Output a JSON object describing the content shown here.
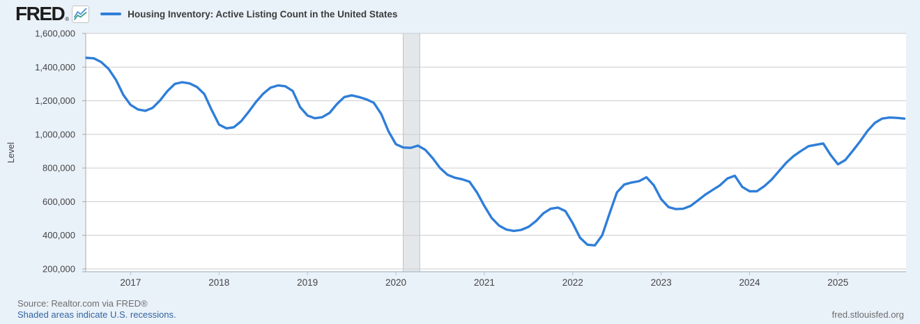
{
  "header": {
    "logo_text": "FRED",
    "registered_mark": "®",
    "legend_label": "Housing Inventory: Active Listing Count in the United States"
  },
  "footer": {
    "source": "Source: Realtor.com via FRED®",
    "recession_note": "Shaded areas indicate U.S. recessions.",
    "site": "fred.stlouisfed.org"
  },
  "colors": {
    "background": "#e9f1f9",
    "plot_bg": "#ffffff",
    "line": "#2f7ed8",
    "gridline": "#cccccc",
    "axis_line": "#a9a9a9",
    "x_axis_line": "#b3c2ce",
    "recession_band": "#e4e7ea",
    "recession_band_edge": "#bcc2c6",
    "axis_text": "#444444",
    "title_text": "#3c3c3c",
    "source_text": "#6e6e6e",
    "link": "#33659f",
    "logo": "#1c1c1c"
  },
  "chart_data": {
    "type": "line",
    "title": "Housing Inventory: Active Listing Count in the United States",
    "ylabel": "Level",
    "xlabel": "",
    "frequency": "monthly",
    "start": "2016-07",
    "end": "2025-10",
    "x_start": 2016.5,
    "xlim": [
      2016.5,
      2025.77
    ],
    "ylim": [
      200000,
      1600000
    ],
    "grid": "horizontal",
    "legend_position": "top-left",
    "y_tick_values": [
      1600000,
      1400000,
      1200000,
      1000000,
      800000,
      600000,
      400000,
      200000
    ],
    "y_tick_labels": [
      "1,600,000",
      "1,400,000",
      "1,200,000",
      "1,000,000",
      "800,000",
      "600,000",
      "400,000",
      "200,000"
    ],
    "x_tick_values": [
      2017,
      2018,
      2019,
      2020,
      2021,
      2022,
      2023,
      2024,
      2025
    ],
    "x_tick_labels": [
      "2017",
      "2018",
      "2019",
      "2020",
      "2021",
      "2022",
      "2023",
      "2024",
      "2025"
    ],
    "recession_bands": [
      {
        "start": 2020.083,
        "end": 2020.27
      }
    ],
    "series": [
      {
        "name": "Housing Inventory: Active Listing Count in the United States",
        "color": "#2f7ed8",
        "values": [
          1455000,
          1452000,
          1430000,
          1390000,
          1325000,
          1235000,
          1175000,
          1148000,
          1140000,
          1158000,
          1202000,
          1258000,
          1300000,
          1310000,
          1303000,
          1282000,
          1240000,
          1145000,
          1058000,
          1036000,
          1042000,
          1078000,
          1133000,
          1192000,
          1242000,
          1278000,
          1291000,
          1286000,
          1258000,
          1162000,
          1112000,
          1096000,
          1102000,
          1128000,
          1180000,
          1222000,
          1232000,
          1222000,
          1208000,
          1188000,
          1122000,
          1018000,
          942000,
          922000,
          920000,
          933000,
          908000,
          858000,
          800000,
          760000,
          742000,
          733000,
          718000,
          655000,
          575000,
          503000,
          458000,
          434000,
          426000,
          432000,
          450000,
          484000,
          530000,
          558000,
          565000,
          544000,
          472000,
          385000,
          344000,
          340000,
          400000,
          530000,
          655000,
          702000,
          714000,
          722000,
          745000,
          698000,
          615000,
          568000,
          556000,
          558000,
          575000,
          608000,
          642000,
          670000,
          698000,
          738000,
          754000,
          688000,
          662000,
          662000,
          692000,
          732000,
          782000,
          832000,
          872000,
          902000,
          930000,
          938000,
          946000,
          878000,
          822000,
          848000,
          902000,
          958000,
          1020000,
          1068000,
          1094000,
          1100000,
          1098000,
          1094000
        ]
      }
    ]
  }
}
